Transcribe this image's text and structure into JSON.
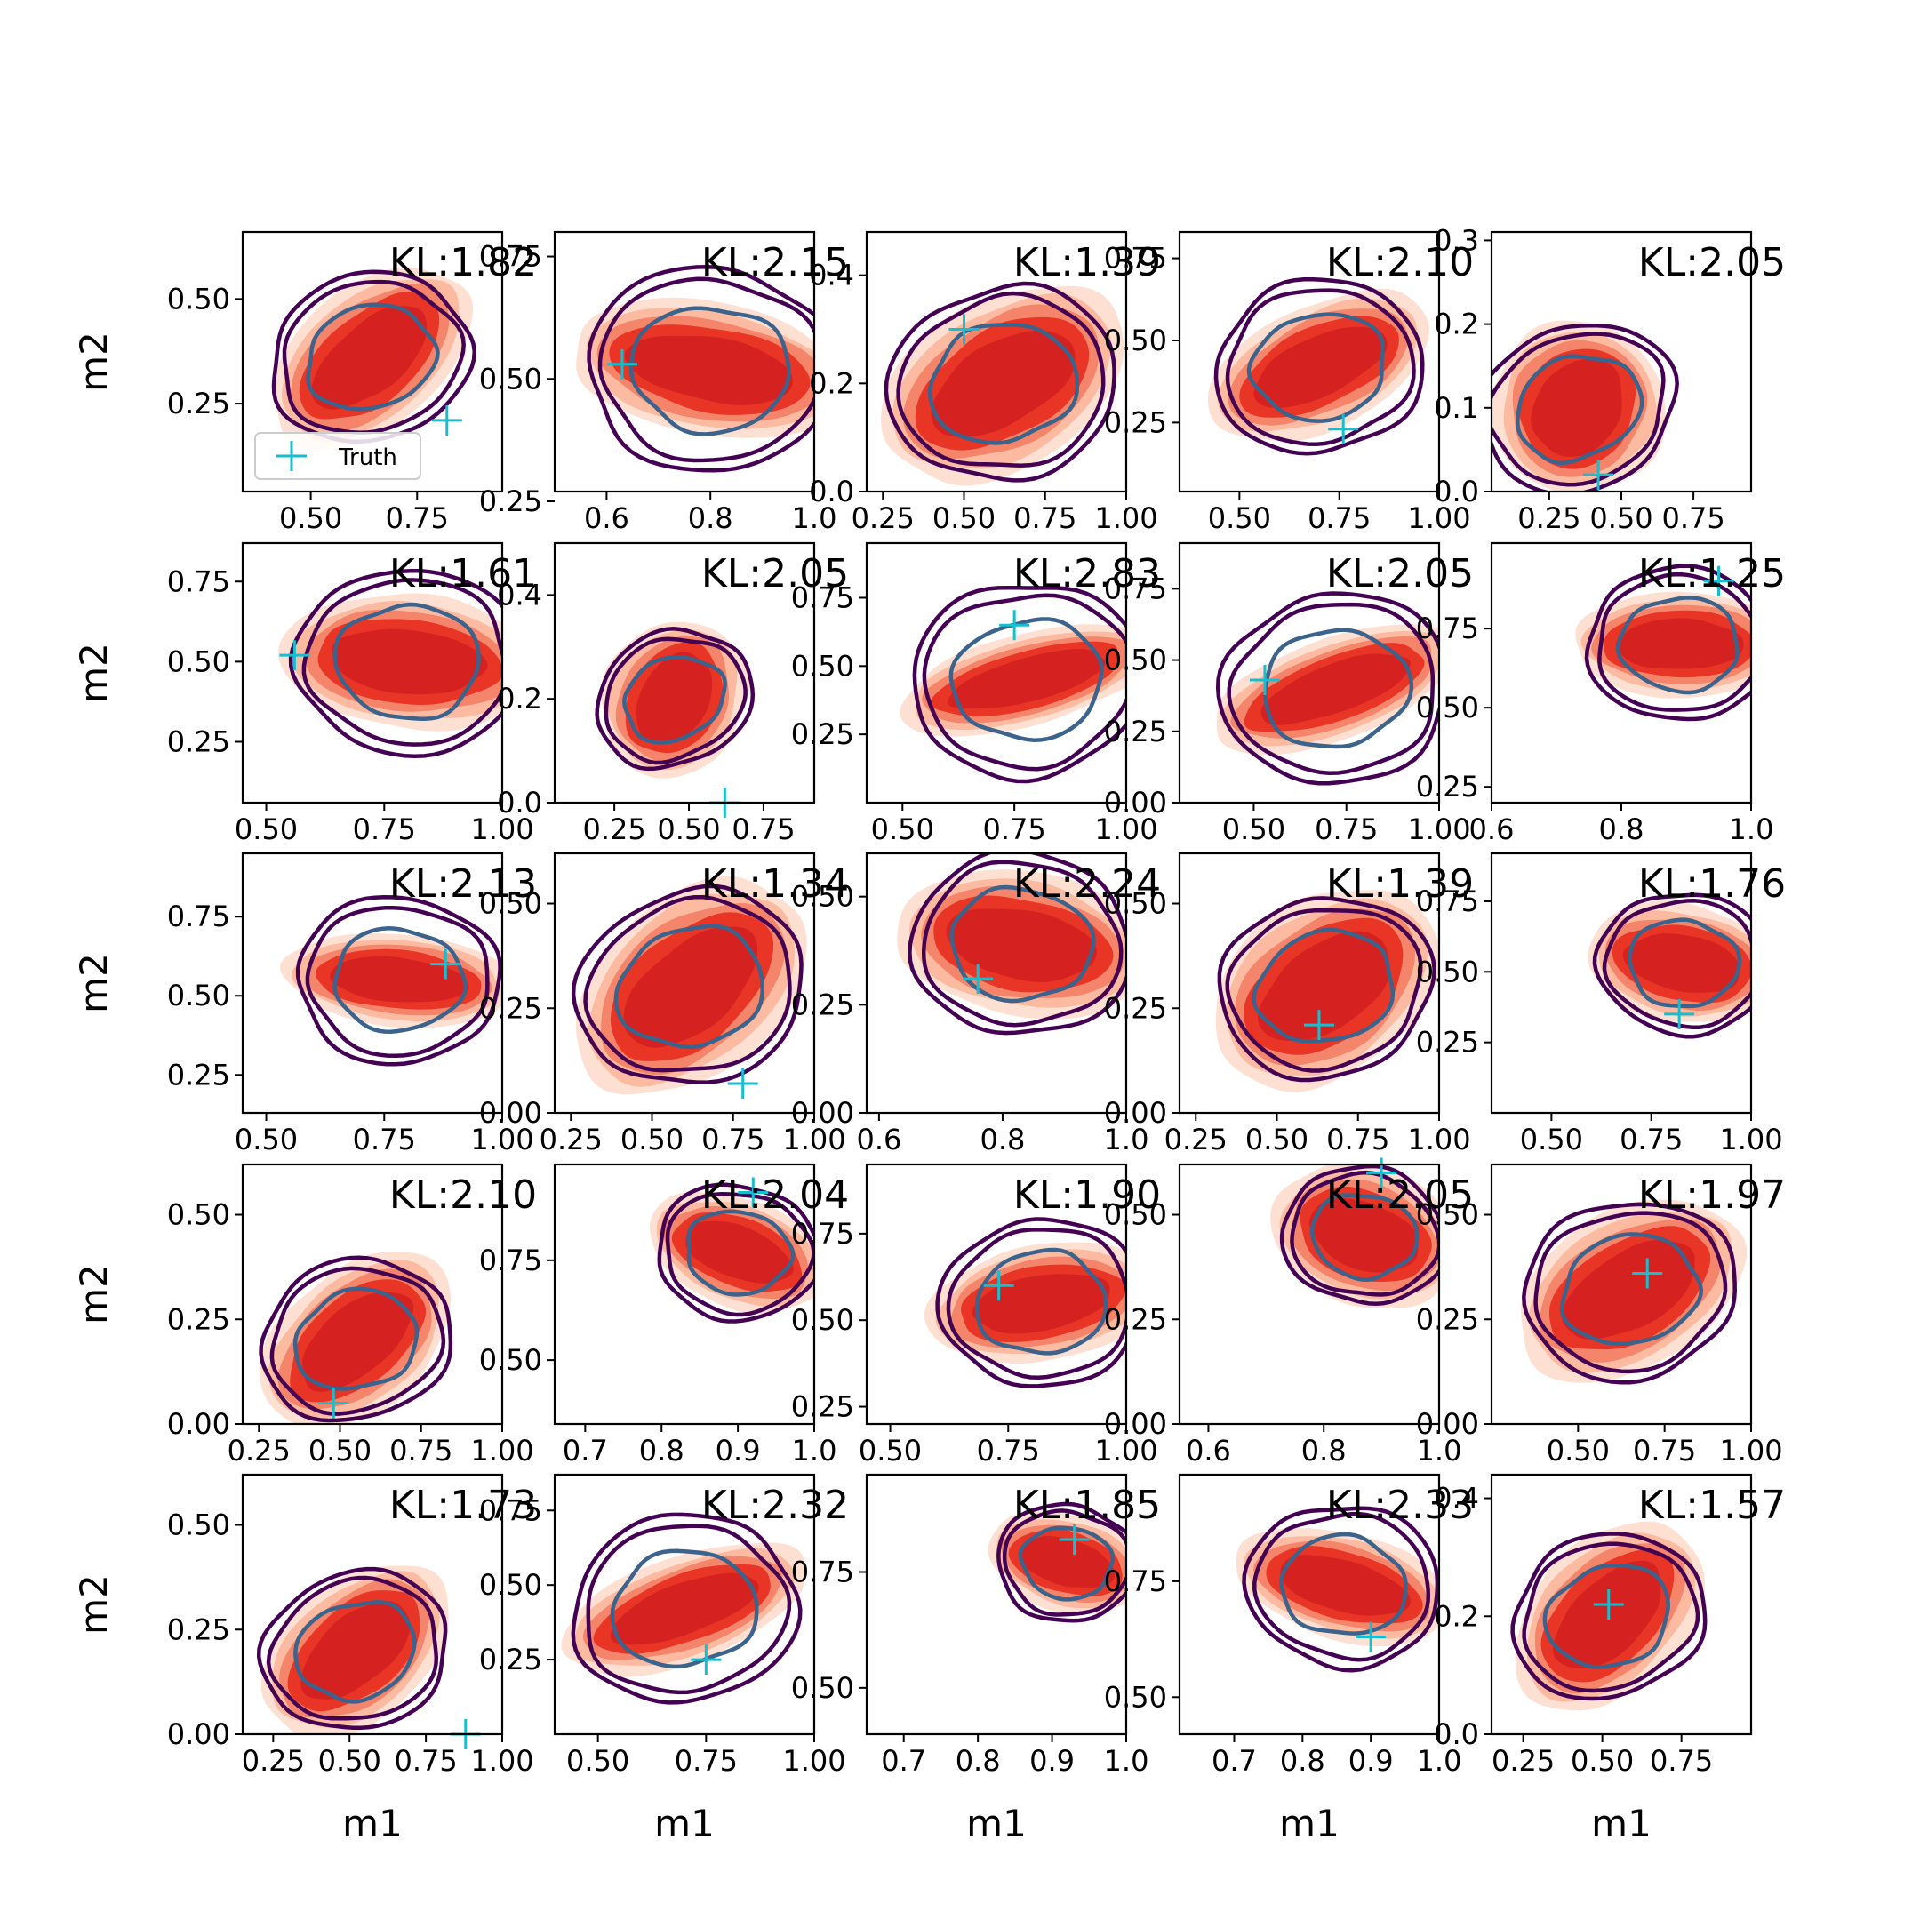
{
  "chart_data": {
    "type": "contour",
    "grid": "5x5",
    "xlabel": "m1",
    "ylabel": "m2",
    "legend": {
      "label": "Truth",
      "placement": "lower-left",
      "panel": 0
    },
    "colors": {
      "filled_contours": [
        "#fde0d2",
        "#fcbba1",
        "#f4846a",
        "#e83526",
        "#d52221"
      ],
      "line_outer": "#440154",
      "line_inner": "#3b638c",
      "truth_marker": "#17becf"
    },
    "panels": [
      {
        "kl": "KL:1.82",
        "xlim": [
          0.34,
          0.95
        ],
        "ylim": [
          0.04,
          0.66
        ],
        "xticks": [
          0.5,
          0.75
        ],
        "xticklabels": [
          "0.50",
          "0.75"
        ],
        "yticks": [
          0.25,
          0.5
        ],
        "yticklabels": [
          "0.25",
          "0.50"
        ],
        "truth": [
          0.82,
          0.21
        ],
        "c": [
          0.64,
          0.36
        ],
        "w": 0.2,
        "h": 0.16,
        "angle": -40
      },
      {
        "kl": "KL:2.15",
        "xlim": [
          0.5,
          1.0
        ],
        "ylim": [
          0.27,
          0.8
        ],
        "xticks": [
          0.6,
          0.8,
          1.0
        ],
        "xticklabels": [
          "0.6",
          "0.8",
          "1.0"
        ],
        "yticks": [
          0.25,
          0.5,
          0.75
        ],
        "yticklabels": [
          "0.25",
          "0.50",
          "0.75"
        ],
        "truth": [
          0.63,
          0.53
        ],
        "c": [
          0.8,
          0.52
        ],
        "w": 0.2,
        "h": 0.13,
        "angle": 10
      },
      {
        "kl": "KL:1.39",
        "xlim": [
          0.2,
          1.0
        ],
        "ylim": [
          0.0,
          0.48
        ],
        "xticks": [
          0.25,
          0.5,
          0.75,
          1.0
        ],
        "xticklabels": [
          "0.25",
          "0.50",
          "0.75",
          "1.00"
        ],
        "yticks": [
          0.0,
          0.2,
          0.4
        ],
        "yticklabels": [
          "0.0",
          "0.2",
          "0.4"
        ],
        "truth": [
          0.5,
          0.3
        ],
        "c": [
          0.62,
          0.2
        ],
        "w": 0.3,
        "h": 0.15,
        "angle": -30
      },
      {
        "kl": "KL:2.10",
        "xlim": [
          0.35,
          1.0
        ],
        "ylim": [
          0.04,
          0.83
        ],
        "xticks": [
          0.5,
          0.75,
          1.0
        ],
        "xticklabels": [
          "0.50",
          "0.75",
          "1.00"
        ],
        "yticks": [
          0.25,
          0.5,
          0.75
        ],
        "yticklabels": [
          "0.25",
          "0.50",
          "0.75"
        ],
        "truth": [
          0.76,
          0.23
        ],
        "c": [
          0.7,
          0.42
        ],
        "w": 0.22,
        "h": 0.18,
        "angle": -25
      },
      {
        "kl": "KL:2.05",
        "xlim": [
          0.05,
          0.95
        ],
        "ylim": [
          0.0,
          0.31
        ],
        "xticks": [
          0.25,
          0.5,
          0.75
        ],
        "xticklabels": [
          "0.25",
          "0.50",
          "0.75"
        ],
        "yticks": [
          0.0,
          0.1,
          0.2,
          0.3
        ],
        "yticklabels": [
          "0.0",
          "0.1",
          "0.2",
          "0.3"
        ],
        "truth": [
          0.42,
          0.02
        ],
        "c": [
          0.35,
          0.1
        ],
        "w": 0.22,
        "h": 0.1,
        "angle": -55
      },
      {
        "kl": "KL:1.61",
        "xlim": [
          0.45,
          1.0
        ],
        "ylim": [
          0.06,
          0.87
        ],
        "xticks": [
          0.5,
          0.75,
          1.0
        ],
        "xticklabels": [
          "0.50",
          "0.75",
          "1.00"
        ],
        "yticks": [
          0.25,
          0.5,
          0.75
        ],
        "yticklabels": [
          "0.25",
          "0.50",
          "0.75"
        ],
        "truth": [
          0.56,
          0.52
        ],
        "c": [
          0.8,
          0.5
        ],
        "w": 0.2,
        "h": 0.2,
        "angle": 5
      },
      {
        "kl": "KL:2.05",
        "xlim": [
          0.05,
          0.92
        ],
        "ylim": [
          0.0,
          0.5
        ],
        "xticks": [
          0.25,
          0.5,
          0.75
        ],
        "xticklabels": [
          "0.25",
          "0.50",
          "0.75"
        ],
        "yticks": [
          0.0,
          0.2,
          0.4
        ],
        "yticklabels": [
          "0.0",
          "0.2",
          "0.4"
        ],
        "truth": [
          0.62,
          0.0
        ],
        "c": [
          0.45,
          0.2
        ],
        "w": 0.2,
        "h": 0.13,
        "angle": -60
      },
      {
        "kl": "KL:2.83",
        "xlim": [
          0.42,
          1.0
        ],
        "ylim": [
          0.0,
          0.95
        ],
        "xticks": [
          0.5,
          0.75,
          1.0
        ],
        "xticklabels": [
          "0.50",
          "0.75",
          "1.00"
        ],
        "yticks": [
          0.25,
          0.5,
          0.75
        ],
        "yticklabels": [
          "0.25",
          "0.50",
          "0.75"
        ],
        "truth": [
          0.75,
          0.65
        ],
        "c": [
          0.78,
          0.45
        ],
        "w": 0.22,
        "h": 0.16,
        "angle": -15
      },
      {
        "kl": "KL:2.05",
        "xlim": [
          0.3,
          1.0
        ],
        "ylim": [
          0.0,
          0.91
        ],
        "xticks": [
          0.5,
          0.75,
          1.0
        ],
        "xticklabels": [
          "0.50",
          "0.75",
          "1.00"
        ],
        "yticks": [
          0.0,
          0.25,
          0.5,
          0.75
        ],
        "yticklabels": [
          "0.00",
          "0.25",
          "0.50",
          "0.75"
        ],
        "truth": [
          0.53,
          0.43
        ],
        "c": [
          0.72,
          0.4
        ],
        "w": 0.26,
        "h": 0.17,
        "angle": -20
      },
      {
        "kl": "KL:1.25",
        "xlim": [
          0.6,
          1.0
        ],
        "ylim": [
          0.2,
          1.02
        ],
        "xticks": [
          0.6,
          0.8,
          1.0
        ],
        "xticklabels": [
          "0.6",
          "0.8",
          "1.0"
        ],
        "yticks": [
          0.25,
          0.5,
          0.75
        ],
        "yticklabels": [
          "0.25",
          "0.50",
          "0.75"
        ],
        "truth": [
          0.95,
          0.9
        ],
        "c": [
          0.89,
          0.7
        ],
        "w": 0.12,
        "h": 0.16,
        "angle": 0
      },
      {
        "kl": "KL:2.13",
        "xlim": [
          0.45,
          1.0
        ],
        "ylim": [
          0.13,
          0.95
        ],
        "xticks": [
          0.5,
          0.75,
          1.0
        ],
        "xticklabels": [
          "0.50",
          "0.75",
          "1.00"
        ],
        "yticks": [
          0.25,
          0.5,
          0.75
        ],
        "yticklabels": [
          "0.25",
          "0.50",
          "0.75"
        ],
        "truth": [
          0.88,
          0.6
        ],
        "c": [
          0.78,
          0.55
        ],
        "w": 0.18,
        "h": 0.14,
        "angle": 5
      },
      {
        "kl": "KL:1.34",
        "xlim": [
          0.2,
          1.0
        ],
        "ylim": [
          0.0,
          0.62
        ],
        "xticks": [
          0.25,
          0.5,
          0.75,
          1.0
        ],
        "xticklabels": [
          "0.25",
          "0.50",
          "0.75",
          "1.00"
        ],
        "yticks": [
          0.0,
          0.25,
          0.5
        ],
        "yticklabels": [
          "0.00",
          "0.25",
          "0.50"
        ],
        "truth": [
          0.78,
          0.07
        ],
        "c": [
          0.62,
          0.3
        ],
        "w": 0.3,
        "h": 0.2,
        "angle": -40
      },
      {
        "kl": "KL:2.24",
        "xlim": [
          0.58,
          1.0
        ],
        "ylim": [
          0.0,
          0.6
        ],
        "xticks": [
          0.6,
          0.8,
          1.0
        ],
        "xticklabels": [
          "0.6",
          "0.8",
          "1.0"
        ],
        "yticks": [
          0.0,
          0.25,
          0.5
        ],
        "yticklabels": [
          "0.00",
          "0.25",
          "0.50"
        ],
        "truth": [
          0.76,
          0.31
        ],
        "c": [
          0.83,
          0.39
        ],
        "w": 0.15,
        "h": 0.16,
        "angle": 10
      },
      {
        "kl": "KL:1.39",
        "xlim": [
          0.2,
          1.0
        ],
        "ylim": [
          0.0,
          0.62
        ],
        "xticks": [
          0.25,
          0.5,
          0.75,
          1.0
        ],
        "xticklabels": [
          "0.25",
          "0.50",
          "0.75",
          "1.00"
        ],
        "yticks": [
          0.0,
          0.25,
          0.5
        ],
        "yticklabels": [
          "0.00",
          "0.25",
          "0.50"
        ],
        "truth": [
          0.63,
          0.21
        ],
        "c": [
          0.65,
          0.3
        ],
        "w": 0.28,
        "h": 0.2,
        "angle": -35
      },
      {
        "kl": "KL:1.76",
        "xlim": [
          0.35,
          1.0
        ],
        "ylim": [
          0.0,
          0.92
        ],
        "xticks": [
          0.5,
          0.75,
          1.0
        ],
        "xticklabels": [
          "0.50",
          "0.75",
          "1.00"
        ],
        "yticks": [
          0.25,
          0.5,
          0.75
        ],
        "yticklabels": [
          "0.25",
          "0.50",
          "0.75"
        ],
        "truth": [
          0.82,
          0.35
        ],
        "c": [
          0.83,
          0.53
        ],
        "w": 0.18,
        "h": 0.2,
        "angle": 10
      },
      {
        "kl": "KL:2.10",
        "xlim": [
          0.2,
          1.0
        ],
        "ylim": [
          0.0,
          0.62
        ],
        "xticks": [
          0.25,
          0.5,
          0.75,
          1.0
        ],
        "xticklabels": [
          "0.25",
          "0.50",
          "0.75",
          "1.00"
        ],
        "yticks": [
          0.0,
          0.25,
          0.5
        ],
        "yticklabels": [
          "0.00",
          "0.25",
          "0.50"
        ],
        "truth": [
          0.48,
          0.05
        ],
        "c": [
          0.55,
          0.2
        ],
        "w": 0.25,
        "h": 0.16,
        "angle": -40
      },
      {
        "kl": "KL:2.04",
        "xlim": [
          0.66,
          1.0
        ],
        "ylim": [
          0.34,
          0.99
        ],
        "xticks": [
          0.7,
          0.8,
          0.9,
          1.0
        ],
        "xticklabels": [
          "0.7",
          "0.8",
          "0.9",
          "1.0"
        ],
        "yticks": [
          0.5,
          0.75
        ],
        "yticklabels": [
          "0.50",
          "0.75"
        ],
        "truth": [
          0.92,
          0.92
        ],
        "c": [
          0.9,
          0.77
        ],
        "w": 0.09,
        "h": 0.13,
        "angle": 20
      },
      {
        "kl": "KL:1.90",
        "xlim": [
          0.45,
          1.0
        ],
        "ylim": [
          0.2,
          0.95
        ],
        "xticks": [
          0.5,
          0.75,
          1.0
        ],
        "xticklabels": [
          "0.50",
          "0.75",
          "1.00"
        ],
        "yticks": [
          0.25,
          0.5,
          0.75
        ],
        "yticklabels": [
          "0.25",
          "0.50",
          "0.75"
        ],
        "truth": [
          0.73,
          0.6
        ],
        "c": [
          0.82,
          0.55
        ],
        "w": 0.18,
        "h": 0.16,
        "angle": -10
      },
      {
        "kl": "KL:2.05",
        "xlim": [
          0.55,
          1.0
        ],
        "ylim": [
          0.0,
          0.62
        ],
        "xticks": [
          0.6,
          0.8,
          1.0
        ],
        "xticklabels": [
          "0.6",
          "0.8",
          "1.0"
        ],
        "yticks": [
          0.0,
          0.25,
          0.5
        ],
        "yticklabels": [
          "0.00",
          "0.25",
          "0.50"
        ],
        "truth": [
          0.9,
          0.6
        ],
        "c": [
          0.87,
          0.45
        ],
        "w": 0.12,
        "h": 0.16,
        "angle": 20
      },
      {
        "kl": "KL:1.97",
        "xlim": [
          0.25,
          1.0
        ],
        "ylim": [
          0.0,
          0.62
        ],
        "xticks": [
          0.5,
          0.75,
          1.0
        ],
        "xticklabels": [
          "0.50",
          "0.75",
          "1.00"
        ],
        "yticks": [
          0.0,
          0.25,
          0.5
        ],
        "yticklabels": [
          "0.00",
          "0.25",
          "0.50"
        ],
        "truth": [
          0.7,
          0.36
        ],
        "c": [
          0.65,
          0.32
        ],
        "w": 0.26,
        "h": 0.18,
        "angle": -30
      },
      {
        "kl": "KL:1.73",
        "xlim": [
          0.15,
          1.0
        ],
        "ylim": [
          0.0,
          0.62
        ],
        "xticks": [
          0.25,
          0.5,
          0.75,
          1.0
        ],
        "xticklabels": [
          "0.25",
          "0.50",
          "0.75",
          "1.00"
        ],
        "yticks": [
          0.0,
          0.25,
          0.5
        ],
        "yticklabels": [
          "0.00",
          "0.25",
          "0.50"
        ],
        "truth": [
          0.88,
          0.0
        ],
        "c": [
          0.52,
          0.2
        ],
        "w": 0.26,
        "h": 0.16,
        "angle": -40
      },
      {
        "kl": "KL:2.32",
        "xlim": [
          0.4,
          1.0
        ],
        "ylim": [
          0.0,
          0.87
        ],
        "xticks": [
          0.5,
          0.75,
          1.0
        ],
        "xticklabels": [
          "0.50",
          "0.75",
          "1.00"
        ],
        "yticks": [
          0.25,
          0.5,
          0.75
        ],
        "yticklabels": [
          "0.25",
          "0.50",
          "0.75"
        ],
        "truth": [
          0.75,
          0.25
        ],
        "c": [
          0.7,
          0.42
        ],
        "w": 0.22,
        "h": 0.17,
        "angle": -20
      },
      {
        "kl": "KL:1.85",
        "xlim": [
          0.65,
          1.0
        ],
        "ylim": [
          0.4,
          0.96
        ],
        "xticks": [
          0.7,
          0.8,
          0.9,
          1.0
        ],
        "xticklabels": [
          "0.7",
          "0.8",
          "0.9",
          "1.0"
        ],
        "yticks": [
          0.5,
          0.75
        ],
        "yticklabels": [
          "0.50",
          "0.75"
        ],
        "truth": [
          0.93,
          0.82
        ],
        "c": [
          0.92,
          0.77
        ],
        "w": 0.08,
        "h": 0.1,
        "angle": 15
      },
      {
        "kl": "KL:2.33",
        "xlim": [
          0.62,
          1.0
        ],
        "ylim": [
          0.42,
          0.98
        ],
        "xticks": [
          0.7,
          0.8,
          0.9,
          1.0
        ],
        "xticklabels": [
          "0.7",
          "0.8",
          "0.9",
          "1.0"
        ],
        "yticks": [
          0.5,
          0.75
        ],
        "yticklabels": [
          "0.50",
          "0.75"
        ],
        "truth": [
          0.9,
          0.63
        ],
        "c": [
          0.86,
          0.74
        ],
        "w": 0.12,
        "h": 0.11,
        "angle": 15
      },
      {
        "kl": "KL:1.57",
        "xlim": [
          0.15,
          0.97
        ],
        "ylim": [
          0.0,
          0.44
        ],
        "xticks": [
          0.25,
          0.5,
          0.75
        ],
        "xticklabels": [
          "0.25",
          "0.50",
          "0.75"
        ],
        "yticks": [
          0.0,
          0.2,
          0.4
        ],
        "yticklabels": [
          "0.0",
          "0.2",
          "0.4"
        ],
        "truth": [
          0.52,
          0.22
        ],
        "c": [
          0.52,
          0.2
        ],
        "w": 0.26,
        "h": 0.12,
        "angle": -45
      }
    ]
  }
}
